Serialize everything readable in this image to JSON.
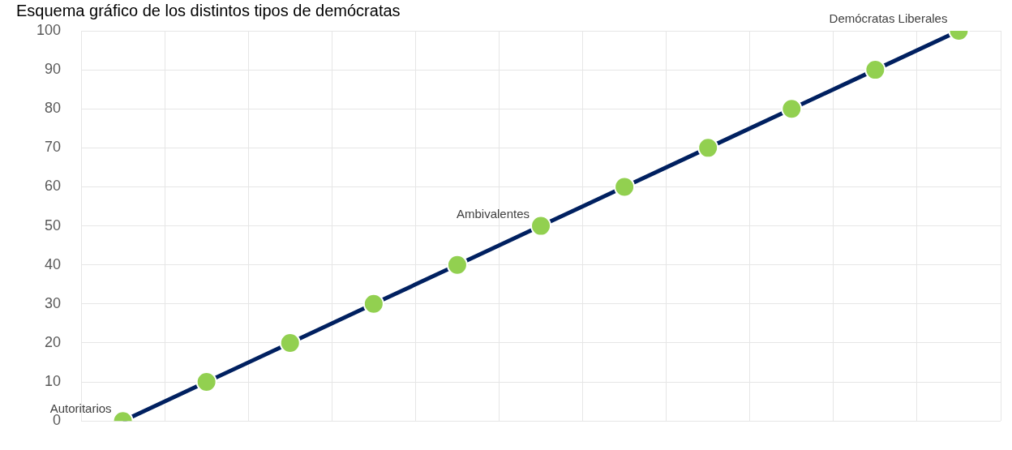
{
  "chart_data": {
    "type": "line",
    "title": "Esquema gráfico de los distintos tipos de demócratas",
    "categories": [
      null,
      null,
      null,
      null,
      null,
      null,
      null,
      null,
      null,
      null,
      null
    ],
    "series": [
      {
        "color": "#002060",
        "values": [
          0,
          10,
          20,
          30,
          40,
          50,
          60,
          70,
          80,
          90,
          100
        ],
        "value_labels": [
          "Autoritarios",
          null,
          null,
          null,
          null,
          "Ambivalentes",
          null,
          null,
          null,
          null,
          "Demócratas Liberales"
        ]
      }
    ],
    "ylim": [
      0,
      100
    ],
    "yticks": [
      0,
      10,
      20,
      30,
      40,
      50,
      60,
      70,
      80,
      90,
      100
    ],
    "grid": true,
    "marker": "circle",
    "line_style": "solid",
    "legend": false
  }
}
